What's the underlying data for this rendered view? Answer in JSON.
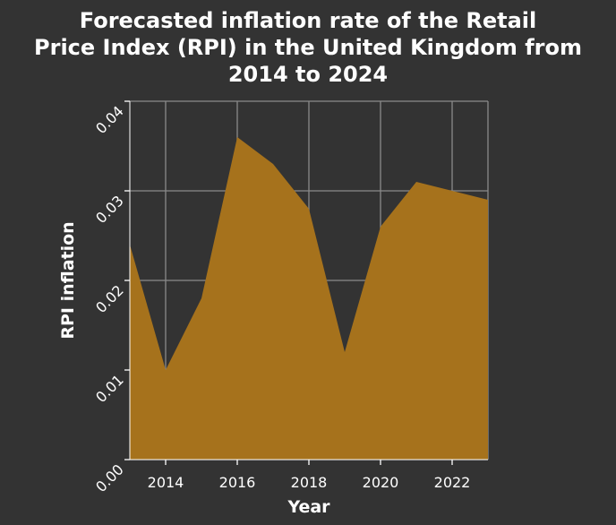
{
  "chart_data": {
    "type": "area",
    "title_lines": [
      "Forecasted inflation rate of the Retail",
      "Price Index (RPI) in the United Kingdom from",
      "2014 to 2024"
    ],
    "xlabel": "Year",
    "ylabel": "RPI inflation",
    "xlim": [
      2013,
      2023
    ],
    "ylim": [
      0,
      0.04
    ],
    "x_ticks": [
      2014,
      2016,
      2018,
      2020,
      2022
    ],
    "y_ticks": [
      "0.00",
      "0.01",
      "0.02",
      "0.03",
      "0.04"
    ],
    "grid": true,
    "fill_color": "#a6721c",
    "grid_color": "#8a8a8a",
    "series": [
      {
        "x": [
          2013,
          2014,
          2015,
          2016,
          2017,
          2018,
          2019,
          2020,
          2021,
          2022,
          2023
        ],
        "values": [
          0.024,
          0.01,
          0.018,
          0.036,
          0.033,
          0.028,
          0.012,
          0.026,
          0.031,
          0.03,
          0.029
        ]
      }
    ]
  }
}
